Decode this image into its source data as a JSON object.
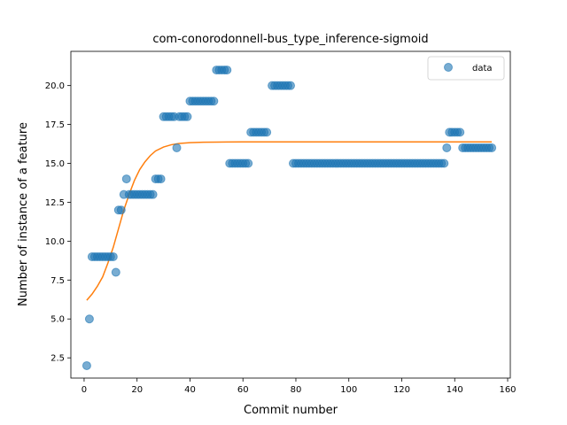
{
  "chart_data": {
    "type": "scatter",
    "title": "com-conorodonnell-bus_type_inference-sigmoid",
    "xlabel": "Commit number",
    "ylabel": "Number of instance of a feature",
    "xlim": [
      -5,
      161
    ],
    "ylim": [
      1.2,
      22.2
    ],
    "xticks": [
      0,
      20,
      40,
      60,
      80,
      100,
      120,
      140,
      160
    ],
    "yticks": [
      2.5,
      5.0,
      7.5,
      10.0,
      12.5,
      15.0,
      17.5,
      20.0
    ],
    "ytick_labels": [
      "2.5",
      "5.0",
      "7.5",
      "10.0",
      "12.5",
      "15.0",
      "17.5",
      "20.0"
    ],
    "grid": false,
    "legend": {
      "position": "top-right",
      "entries": [
        "data"
      ]
    },
    "colors": {
      "scatter": "#1f77b4",
      "fit": "#ff7f0e"
    },
    "series": [
      {
        "name": "data",
        "kind": "scatter",
        "points": [
          [
            1,
            2
          ],
          [
            2,
            5
          ],
          [
            3,
            9
          ],
          [
            4,
            9
          ],
          [
            5,
            9
          ],
          [
            6,
            9
          ],
          [
            7,
            9
          ],
          [
            8,
            9
          ],
          [
            9,
            9
          ],
          [
            10,
            9
          ],
          [
            11,
            9
          ],
          [
            12,
            8
          ],
          [
            13,
            12
          ],
          [
            14,
            12
          ],
          [
            15,
            13
          ],
          [
            16,
            14
          ],
          [
            17,
            13
          ],
          [
            18,
            13
          ],
          [
            19,
            13
          ],
          [
            20,
            13
          ],
          [
            21,
            13
          ],
          [
            22,
            13
          ],
          [
            23,
            13
          ],
          [
            24,
            13
          ],
          [
            25,
            13
          ],
          [
            26,
            13
          ],
          [
            27,
            14
          ],
          [
            28,
            14
          ],
          [
            29,
            14
          ],
          [
            30,
            18
          ],
          [
            31,
            18
          ],
          [
            32,
            18
          ],
          [
            33,
            18
          ],
          [
            34,
            18
          ],
          [
            35,
            16
          ],
          [
            36,
            18
          ],
          [
            37,
            18
          ],
          [
            38,
            18
          ],
          [
            39,
            18
          ],
          [
            40,
            19
          ],
          [
            41,
            19
          ],
          [
            42,
            19
          ],
          [
            43,
            19
          ],
          [
            44,
            19
          ],
          [
            45,
            19
          ],
          [
            46,
            19
          ],
          [
            47,
            19
          ],
          [
            48,
            19
          ],
          [
            49,
            19
          ],
          [
            50,
            21
          ],
          [
            51,
            21
          ],
          [
            52,
            21
          ],
          [
            53,
            21
          ],
          [
            54,
            21
          ],
          [
            55,
            15
          ],
          [
            56,
            15
          ],
          [
            57,
            15
          ],
          [
            58,
            15
          ],
          [
            59,
            15
          ],
          [
            60,
            15
          ],
          [
            61,
            15
          ],
          [
            62,
            15
          ],
          [
            63,
            17
          ],
          [
            64,
            17
          ],
          [
            65,
            17
          ],
          [
            66,
            17
          ],
          [
            67,
            17
          ],
          [
            68,
            17
          ],
          [
            69,
            17
          ],
          [
            71,
            20
          ],
          [
            72,
            20
          ],
          [
            73,
            20
          ],
          [
            74,
            20
          ],
          [
            75,
            20
          ],
          [
            76,
            20
          ],
          [
            77,
            20
          ],
          [
            78,
            20
          ],
          [
            79,
            15
          ],
          [
            80,
            15
          ],
          [
            81,
            15
          ],
          [
            82,
            15
          ],
          [
            83,
            15
          ],
          [
            84,
            15
          ],
          [
            85,
            15
          ],
          [
            86,
            15
          ],
          [
            87,
            15
          ],
          [
            88,
            15
          ],
          [
            89,
            15
          ],
          [
            90,
            15
          ],
          [
            91,
            15
          ],
          [
            92,
            15
          ],
          [
            93,
            15
          ],
          [
            94,
            15
          ],
          [
            95,
            15
          ],
          [
            96,
            15
          ],
          [
            97,
            15
          ],
          [
            98,
            15
          ],
          [
            99,
            15
          ],
          [
            100,
            15
          ],
          [
            101,
            15
          ],
          [
            102,
            15
          ],
          [
            103,
            15
          ],
          [
            104,
            15
          ],
          [
            105,
            15
          ],
          [
            106,
            15
          ],
          [
            107,
            15
          ],
          [
            108,
            15
          ],
          [
            109,
            15
          ],
          [
            110,
            15
          ],
          [
            111,
            15
          ],
          [
            112,
            15
          ],
          [
            113,
            15
          ],
          [
            114,
            15
          ],
          [
            115,
            15
          ],
          [
            116,
            15
          ],
          [
            117,
            15
          ],
          [
            118,
            15
          ],
          [
            119,
            15
          ],
          [
            120,
            15
          ],
          [
            121,
            15
          ],
          [
            122,
            15
          ],
          [
            123,
            15
          ],
          [
            124,
            15
          ],
          [
            125,
            15
          ],
          [
            126,
            15
          ],
          [
            127,
            15
          ],
          [
            128,
            15
          ],
          [
            129,
            15
          ],
          [
            130,
            15
          ],
          [
            131,
            15
          ],
          [
            132,
            15
          ],
          [
            133,
            15
          ],
          [
            134,
            15
          ],
          [
            135,
            15
          ],
          [
            136,
            15
          ],
          [
            137,
            16
          ],
          [
            138,
            17
          ],
          [
            139,
            17
          ],
          [
            140,
            17
          ],
          [
            141,
            17
          ],
          [
            142,
            17
          ],
          [
            143,
            16
          ],
          [
            144,
            16
          ],
          [
            145,
            16
          ],
          [
            146,
            16
          ],
          [
            147,
            16
          ],
          [
            148,
            16
          ],
          [
            149,
            16
          ],
          [
            150,
            16
          ],
          [
            151,
            16
          ],
          [
            152,
            16
          ],
          [
            153,
            16
          ],
          [
            154,
            16
          ]
        ]
      },
      {
        "kind": "line",
        "points": [
          [
            1,
            6.2
          ],
          [
            3,
            6.6
          ],
          [
            5,
            7.1
          ],
          [
            7,
            7.7
          ],
          [
            9,
            8.6
          ],
          [
            11,
            9.6
          ],
          [
            13,
            10.8
          ],
          [
            15,
            12.0
          ],
          [
            17,
            13.0
          ],
          [
            19,
            13.9
          ],
          [
            21,
            14.6
          ],
          [
            23,
            15.1
          ],
          [
            25,
            15.5
          ],
          [
            27,
            15.8
          ],
          [
            30,
            16.05
          ],
          [
            33,
            16.2
          ],
          [
            36,
            16.28
          ],
          [
            40,
            16.33
          ],
          [
            45,
            16.36
          ],
          [
            50,
            16.37
          ],
          [
            60,
            16.38
          ],
          [
            80,
            16.38
          ],
          [
            100,
            16.38
          ],
          [
            120,
            16.38
          ],
          [
            140,
            16.38
          ],
          [
            154,
            16.38
          ]
        ]
      }
    ]
  }
}
